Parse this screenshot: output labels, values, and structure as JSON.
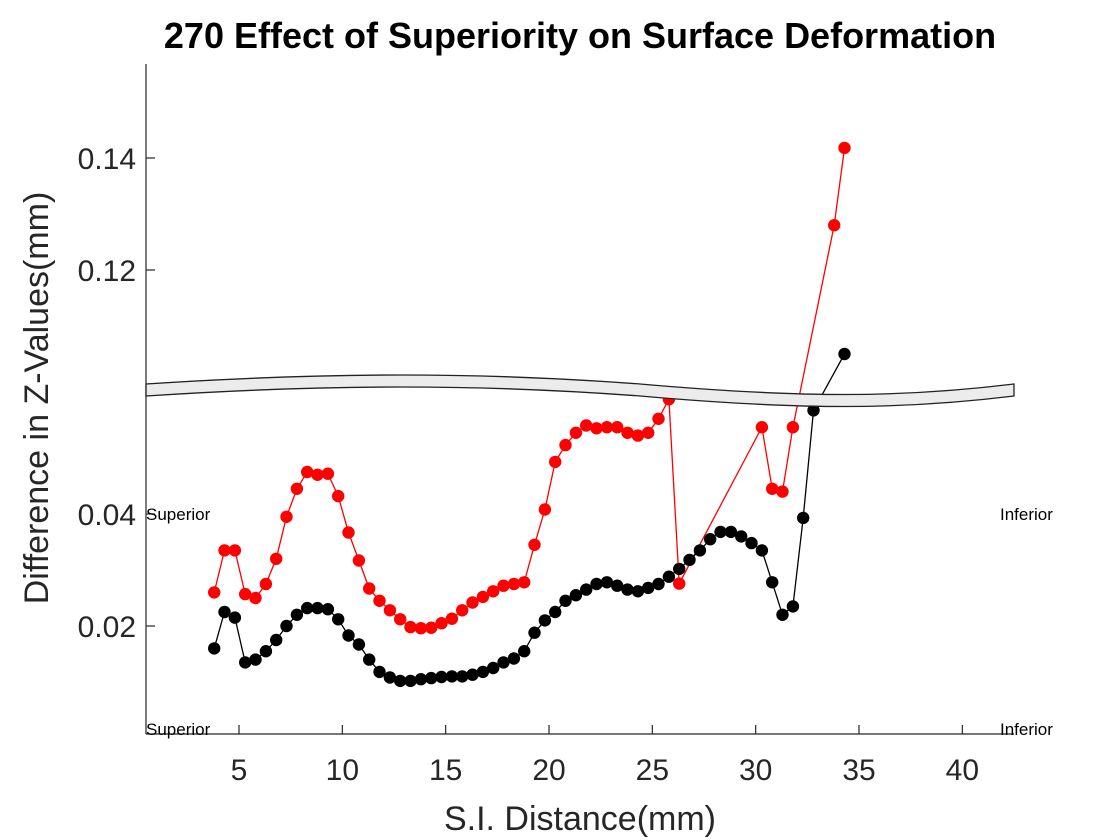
{
  "chart_data": {
    "type": "line",
    "title": "270  Effect of Superiority on Surface Deformation",
    "xlabel": "S.I. Distance(mm)",
    "ylabel": "Difference in Z-Values(mm)",
    "xlim": [
      0.5,
      42.5
    ],
    "x_ticks": [
      5,
      10,
      15,
      20,
      25,
      30,
      35,
      40
    ],
    "x_tick_labels": [
      "5",
      "10",
      "15",
      "20",
      "25",
      "30",
      "35",
      "40"
    ],
    "y_ticks": [
      0.02,
      0.04,
      0.12,
      0.14
    ],
    "y_tick_labels": [
      "0.02",
      "0.04",
      "0.12",
      "0.14"
    ],
    "y_axis_break": true,
    "grid": false,
    "annotations": {
      "left_top": "Superior",
      "right_top": "Inferior",
      "left_bottom": "Superior",
      "right_bottom": "Inferior"
    },
    "series": [
      {
        "color": "#ff0000",
        "x": [
          3.8,
          4.3,
          4.8,
          5.3,
          5.8,
          6.3,
          6.8,
          7.3,
          7.8,
          8.3,
          8.8,
          9.3,
          9.8,
          10.3,
          10.8,
          11.3,
          11.8,
          12.3,
          12.8,
          13.3,
          13.8,
          14.3,
          14.8,
          15.3,
          15.8,
          16.3,
          16.8,
          17.3,
          17.8,
          18.3,
          18.8,
          19.3,
          19.8,
          20.3,
          20.8,
          21.3,
          21.8,
          22.3,
          22.8,
          23.3,
          23.8,
          24.3,
          24.8,
          25.3,
          25.8,
          26.3,
          30.3,
          30.8,
          31.3,
          31.8,
          33.8,
          34.3
        ],
        "y": [
          0.026,
          0.0335,
          0.0335,
          0.0257,
          0.025,
          0.0275,
          0.032,
          0.0395,
          0.0445,
          0.0475,
          0.047,
          0.0472,
          0.0432,
          0.0367,
          0.0317,
          0.0267,
          0.0245,
          0.0228,
          0.0212,
          0.0198,
          0.0196,
          0.0197,
          0.0205,
          0.0213,
          0.0228,
          0.0242,
          0.0252,
          0.0262,
          0.0272,
          0.0275,
          0.0278,
          0.0345,
          0.0408,
          0.0493,
          0.0523,
          0.0545,
          0.0558,
          0.0553,
          0.0555,
          0.0555,
          0.0545,
          0.054,
          0.0545,
          0.057,
          0.0605,
          0.064,
          0.0555,
          0.0445,
          0.044,
          0.0555,
          0.128,
          0.1418
        ]
      },
      {
        "color": "#000000",
        "x": [
          3.8,
          4.3,
          4.8,
          5.3,
          5.8,
          6.3,
          6.8,
          7.3,
          7.8,
          8.3,
          8.8,
          9.3,
          9.8,
          10.3,
          10.8,
          11.3,
          11.8,
          12.3,
          12.8,
          13.3,
          13.8,
          14.3,
          14.8,
          15.3,
          15.8,
          16.3,
          16.8,
          17.3,
          17.8,
          18.3,
          18.8,
          19.3,
          19.8,
          20.3,
          20.8,
          21.3,
          21.8,
          22.3,
          22.8,
          23.3,
          23.8,
          24.3,
          24.8,
          25.3,
          25.8,
          26.3,
          26.8,
          27.3,
          27.8,
          28.3,
          28.8,
          29.3,
          29.8,
          30.3,
          30.8,
          31.3,
          31.8,
          32.3,
          32.8,
          34.3
        ],
        "y": [
          0.016,
          0.0225,
          0.0215,
          0.0135,
          0.014,
          0.0155,
          0.0175,
          0.02,
          0.022,
          0.0232,
          0.0232,
          0.023,
          0.0212,
          0.0183,
          0.0167,
          0.014,
          0.0118,
          0.0108,
          0.0102,
          0.0102,
          0.0105,
          0.0107,
          0.0109,
          0.011,
          0.011,
          0.0113,
          0.0118,
          0.0125,
          0.0135,
          0.0142,
          0.0155,
          0.0188,
          0.021,
          0.0225,
          0.0245,
          0.0255,
          0.0265,
          0.0275,
          0.0278,
          0.0272,
          0.0265,
          0.0262,
          0.0268,
          0.0275,
          0.0288,
          0.0302,
          0.0318,
          0.0335,
          0.0355,
          0.0368,
          0.0368,
          0.036,
          0.0348,
          0.0335,
          0.0278,
          0.022,
          0.0235,
          0.0393,
          0.0585,
          0.105
        ]
      }
    ]
  }
}
